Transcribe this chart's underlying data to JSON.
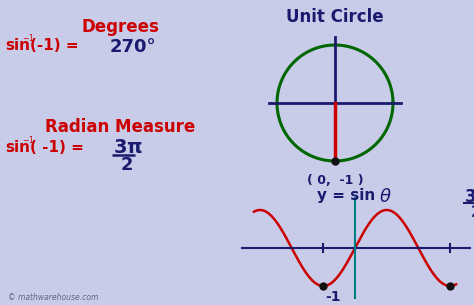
{
  "bg_color": "#c8cce8",
  "title_color": "#1a1a6e",
  "red_color": "#cc0000",
  "green_color": "#006600",
  "dark_blue": "#1a1a6e",
  "watermark": "© mathwarehouse.com",
  "degrees_label": "Degrees",
  "radian_label": "Radian Measure",
  "unit_circle_label": "Unit Circle",
  "point_label": "( 0,  -1 )",
  "sin_label": "y = sin ",
  "deg_answer": "270°"
}
